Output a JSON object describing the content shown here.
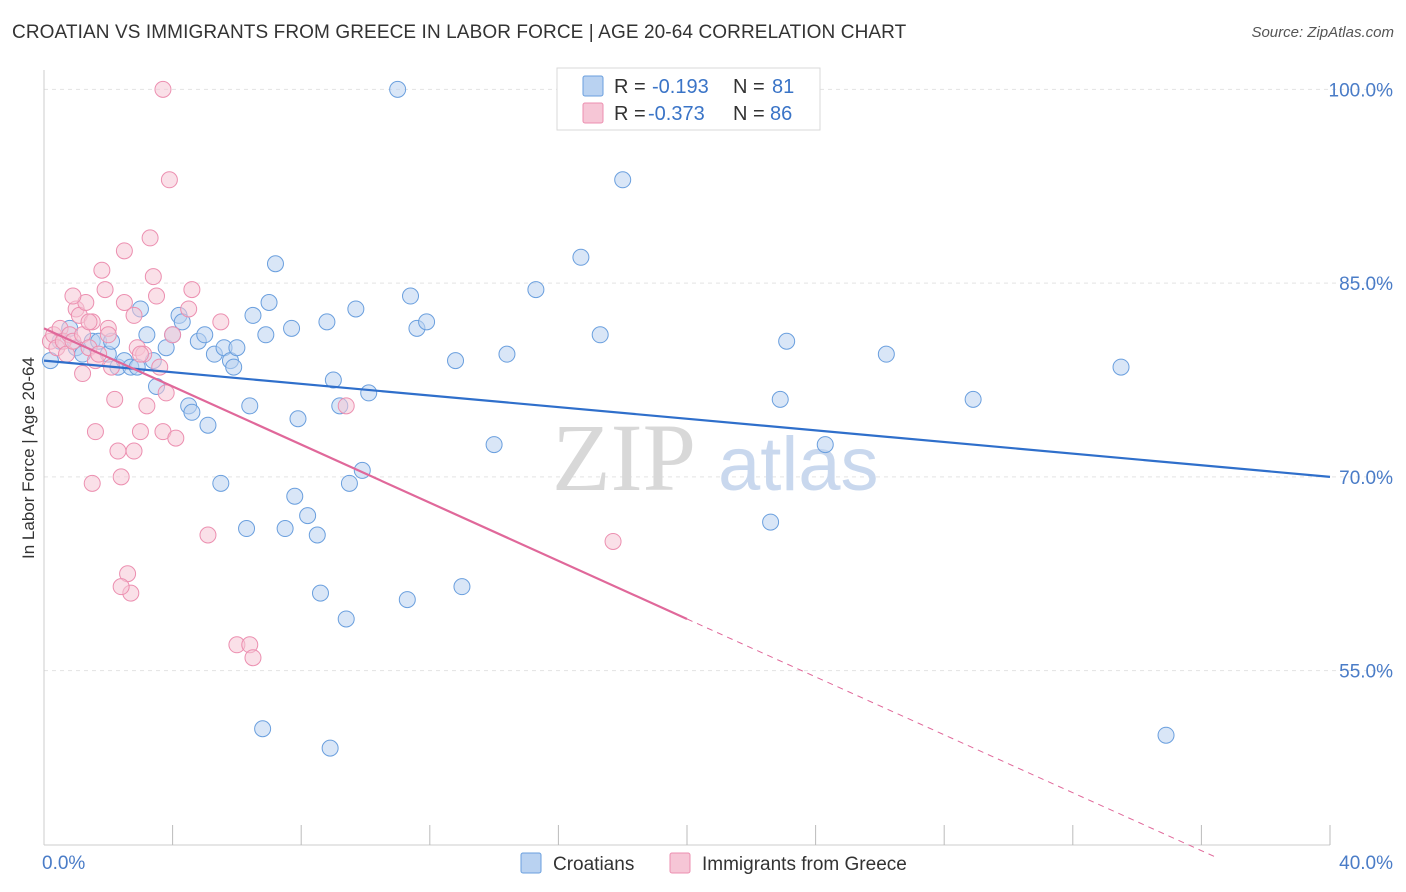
{
  "title": "CROATIAN VS IMMIGRANTS FROM GREECE IN LABOR FORCE | AGE 20-64 CORRELATION CHART",
  "source": "Source: ZipAtlas.com",
  "watermark": {
    "zip": "ZIP",
    "atlas": "atlas"
  },
  "colors": {
    "blue": "#6a9fde",
    "blue_fill": "#b9d2f1",
    "blue_line": "#2f6fcb",
    "pink": "#ec8fb0",
    "pink_fill": "#f6c6d6",
    "pink_line": "#e0689a",
    "grid": "#e3e3e3",
    "axis_text": "#4a7cc7"
  },
  "stats": [
    {
      "series": "Croatians",
      "r_label": "R =",
      "r": "-0.193",
      "n_label": "N =",
      "n": "81"
    },
    {
      "series": "Immigrants from Greece",
      "r_label": "R =",
      "r": "-0.373",
      "n_label": "N =",
      "n": "86"
    }
  ],
  "chart_data": {
    "type": "scatter",
    "title": "CROATIAN VS IMMIGRANTS FROM GREECE IN LABOR FORCE | AGE 20-64 CORRELATION CHART",
    "xlabel": "",
    "ylabel": "In Labor Force | Age 20-64",
    "xlim": [
      0,
      40
    ],
    "ylim": [
      41.5,
      101.5
    ],
    "x_tick_labels": [
      "0.0%",
      "40.0%"
    ],
    "y_ticks": [
      55,
      70,
      85,
      100
    ],
    "y_tick_labels": [
      "55.0%",
      "70.0%",
      "85.0%",
      "100.0%"
    ],
    "grid": true,
    "legend_position": "bottom",
    "series": [
      {
        "name": "Croatians",
        "trend": {
          "x0": 0,
          "y0": 79.0,
          "x1": 40,
          "y1": 70.0
        },
        "points": [
          [
            0.2,
            79.0
          ],
          [
            0.5,
            80.5
          ],
          [
            0.8,
            81.5
          ],
          [
            1.0,
            80.0
          ],
          [
            1.2,
            79.5
          ],
          [
            1.5,
            80.5
          ],
          [
            1.7,
            80.5
          ],
          [
            2.0,
            79.5
          ],
          [
            2.1,
            80.5
          ],
          [
            2.3,
            78.5
          ],
          [
            2.5,
            79.0
          ],
          [
            2.7,
            78.5
          ],
          [
            2.9,
            78.5
          ],
          [
            3.0,
            83.0
          ],
          [
            3.2,
            81.0
          ],
          [
            3.4,
            79.0
          ],
          [
            3.5,
            77.0
          ],
          [
            3.8,
            80.0
          ],
          [
            4.0,
            81.0
          ],
          [
            4.2,
            82.5
          ],
          [
            4.3,
            82.0
          ],
          [
            4.5,
            75.5
          ],
          [
            4.6,
            75.0
          ],
          [
            4.8,
            80.5
          ],
          [
            5.0,
            81.0
          ],
          [
            5.1,
            74.0
          ],
          [
            5.3,
            79.5
          ],
          [
            5.5,
            69.5
          ],
          [
            5.6,
            80.0
          ],
          [
            5.8,
            79.0
          ],
          [
            5.9,
            78.5
          ],
          [
            6.0,
            80.0
          ],
          [
            6.3,
            66.0
          ],
          [
            6.4,
            75.5
          ],
          [
            6.5,
            82.5
          ],
          [
            6.8,
            50.5
          ],
          [
            6.9,
            81.0
          ],
          [
            7.0,
            83.5
          ],
          [
            7.2,
            86.5
          ],
          [
            7.5,
            66.0
          ],
          [
            7.7,
            81.5
          ],
          [
            7.8,
            68.5
          ],
          [
            7.9,
            74.5
          ],
          [
            8.2,
            67.0
          ],
          [
            8.5,
            65.5
          ],
          [
            8.6,
            61.0
          ],
          [
            8.8,
            82.0
          ],
          [
            8.9,
            49.0
          ],
          [
            9.0,
            77.5
          ],
          [
            9.2,
            75.5
          ],
          [
            9.4,
            59.0
          ],
          [
            9.5,
            69.5
          ],
          [
            9.7,
            83.0
          ],
          [
            9.9,
            70.5
          ],
          [
            10.1,
            76.5
          ],
          [
            11.0,
            100.0
          ],
          [
            11.3,
            60.5
          ],
          [
            11.4,
            84.0
          ],
          [
            11.6,
            81.5
          ],
          [
            11.9,
            82.0
          ],
          [
            12.8,
            79.0
          ],
          [
            13.0,
            61.5
          ],
          [
            14.0,
            72.5
          ],
          [
            14.4,
            79.5
          ],
          [
            15.3,
            84.5
          ],
          [
            16.7,
            87.0
          ],
          [
            17.3,
            81.0
          ],
          [
            18.0,
            93.0
          ],
          [
            22.6,
            66.5
          ],
          [
            22.9,
            76.0
          ],
          [
            23.1,
            80.5
          ],
          [
            24.3,
            72.5
          ],
          [
            26.2,
            79.5
          ],
          [
            28.9,
            76.0
          ],
          [
            33.5,
            78.5
          ],
          [
            34.9,
            50.0
          ]
        ]
      },
      {
        "name": "Immigrants from Greece",
        "trend": {
          "x0": 0,
          "y0": 81.5,
          "x1": 20,
          "y1": 59.0,
          "dash_x1": 36.5,
          "dash_y1": 40.5
        },
        "points": [
          [
            0.2,
            80.5
          ],
          [
            0.3,
            81.0
          ],
          [
            0.4,
            80.0
          ],
          [
            0.5,
            81.5
          ],
          [
            0.6,
            80.5
          ],
          [
            0.7,
            79.5
          ],
          [
            0.8,
            81.0
          ],
          [
            0.9,
            80.5
          ],
          [
            1.0,
            83.0
          ],
          [
            1.1,
            82.5
          ],
          [
            1.2,
            81.0
          ],
          [
            1.3,
            83.5
          ],
          [
            1.4,
            80.0
          ],
          [
            1.5,
            82.0
          ],
          [
            1.6,
            79.0
          ],
          [
            1.7,
            79.5
          ],
          [
            1.8,
            86.0
          ],
          [
            1.9,
            84.5
          ],
          [
            2.0,
            81.5
          ],
          [
            2.1,
            78.5
          ],
          [
            2.2,
            76.0
          ],
          [
            2.3,
            72.0
          ],
          [
            2.4,
            70.0
          ],
          [
            2.5,
            87.5
          ],
          [
            2.6,
            62.5
          ],
          [
            2.7,
            61.0
          ],
          [
            2.8,
            82.5
          ],
          [
            2.9,
            80.0
          ],
          [
            3.0,
            73.5
          ],
          [
            3.1,
            79.5
          ],
          [
            3.2,
            75.5
          ],
          [
            3.3,
            88.5
          ],
          [
            3.4,
            85.5
          ],
          [
            3.5,
            84.0
          ],
          [
            3.6,
            78.5
          ],
          [
            3.7,
            73.5
          ],
          [
            3.8,
            76.5
          ],
          [
            3.9,
            93.0
          ],
          [
            4.0,
            81.0
          ],
          [
            4.1,
            73.0
          ],
          [
            4.5,
            83.0
          ],
          [
            4.6,
            84.5
          ],
          [
            5.1,
            65.5
          ],
          [
            5.5,
            82.0
          ],
          [
            6.0,
            57.0
          ],
          [
            6.4,
            57.0
          ],
          [
            6.5,
            56.0
          ],
          [
            3.7,
            100.0
          ],
          [
            9.4,
            75.5
          ],
          [
            17.7,
            65.0
          ],
          [
            1.5,
            69.5
          ],
          [
            2.4,
            61.5
          ],
          [
            2.0,
            81.0
          ],
          [
            1.6,
            73.5
          ],
          [
            2.8,
            72.0
          ],
          [
            0.9,
            84.0
          ],
          [
            1.2,
            78.0
          ],
          [
            2.5,
            83.5
          ],
          [
            3.0,
            79.5
          ],
          [
            1.4,
            82.0
          ]
        ]
      }
    ]
  },
  "legend": [
    {
      "label": "Croatians"
    },
    {
      "label": "Immigrants from Greece"
    }
  ]
}
